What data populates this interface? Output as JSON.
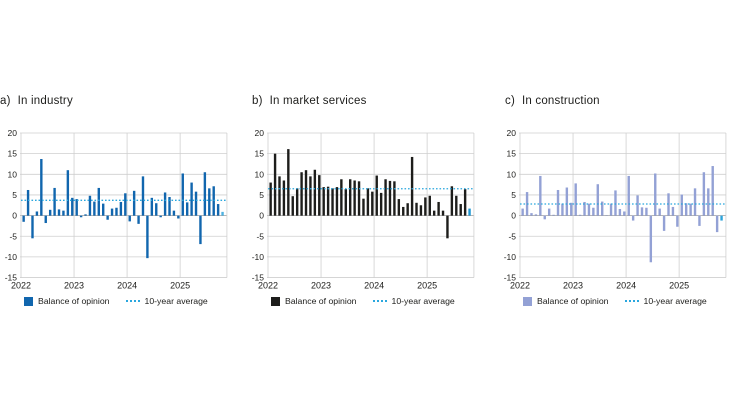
{
  "style": {
    "background": "#ffffff",
    "grid_color": "#cfcfcf",
    "zero_line_color": "#9e9e9e",
    "text_color": "#1d1d1b"
  },
  "chart_data": [
    {
      "type": "bar",
      "label": "a)",
      "title": "In industry",
      "frequency": "monthly",
      "x_start": "Jan 2022",
      "x_end": "Oct 2025",
      "x_ticks": [
        "2022",
        "2023",
        "2024",
        "2025"
      ],
      "y_ticks": [
        20,
        15,
        10,
        5,
        0,
        -5,
        -10,
        -15
      ],
      "ylim": [
        -15,
        20
      ],
      "grid": true,
      "values": [
        -1.5,
        6.2,
        -5.5,
        1.0,
        13.7,
        -1.8,
        1.4,
        6.7,
        1.5,
        1.2,
        11.0,
        4.3,
        4.0,
        -0.4,
        0.3,
        4.8,
        3.4,
        6.7,
        2.9,
        -1.0,
        1.7,
        1.9,
        3.3,
        5.4,
        -1.4,
        6.0,
        -2.0,
        9.5,
        -10.3,
        4.3,
        3.0,
        -0.4,
        5.6,
        4.5,
        1.2,
        -0.7,
        10.2,
        3.2,
        8.0,
        5.8,
        -6.9,
        10.5,
        6.6,
        7.1,
        2.8,
        0.9
      ],
      "average_10yr": 3.7,
      "bar_color": "#1166ae",
      "last_bar_color": "#4db2e2",
      "average_line_color": "#2aa7de",
      "legend": {
        "balance": "Balance of opinion",
        "average": "10-year average"
      },
      "legend_position": "bottom"
    },
    {
      "type": "bar",
      "label": "b)",
      "title": "In market services",
      "frequency": "monthly",
      "x_start": "Jan 2022",
      "x_end": "Oct 2025",
      "x_ticks": [
        "2022",
        "2023",
        "2024",
        "2025"
      ],
      "y_ticks": [
        20,
        15,
        10,
        5,
        0,
        -5,
        -10,
        -15
      ],
      "ylim": [
        -15,
        20
      ],
      "grid": true,
      "values": [
        8.0,
        15.0,
        9.5,
        8.5,
        16.1,
        4.7,
        6.6,
        10.5,
        11.0,
        9.5,
        11.1,
        9.8,
        6.9,
        7.0,
        6.6,
        6.9,
        8.8,
        6.4,
        8.8,
        8.5,
        8.3,
        4.1,
        6.6,
        5.8,
        9.7,
        5.5,
        8.8,
        8.4,
        8.3,
        4.0,
        2.1,
        3.0,
        14.2,
        3.1,
        2.5,
        4.4,
        4.8,
        1.2,
        3.3,
        1.2,
        -5.5,
        7.1,
        4.8,
        2.8,
        6.4,
        1.7
      ],
      "average_10yr": 6.5,
      "bar_color": "#1d1d1b",
      "last_bar_color": "#1d97d4",
      "average_line_color": "#2aa7de",
      "legend": {
        "balance": "Balance of opinion",
        "average": "10-year average"
      },
      "legend_position": "bottom"
    },
    {
      "type": "bar",
      "label": "c)",
      "title": "In construction",
      "frequency": "monthly",
      "x_start": "Jan 2022",
      "x_end": "Oct 2025",
      "x_ticks": [
        "2022",
        "2023",
        "2024",
        "2025"
      ],
      "y_ticks": [
        20,
        15,
        10,
        5,
        0,
        -5,
        -10,
        -15
      ],
      "ylim": [
        -15,
        20
      ],
      "grid": true,
      "values": [
        1.7,
        5.7,
        0.6,
        0.3,
        9.6,
        -0.9,
        1.7,
        0.2,
        6.2,
        2.9,
        6.8,
        3.1,
        7.8,
        0.2,
        3.3,
        2.9,
        1.9,
        7.6,
        3.4,
        0.1,
        2.9,
        6.1,
        1.6,
        1.0,
        9.6,
        -1.2,
        4.9,
        2.0,
        1.9,
        -11.3,
        10.2,
        1.7,
        -3.7,
        5.4,
        2.1,
        -2.7,
        5.1,
        3.0,
        2.9,
        6.6,
        -2.5,
        10.5,
        6.6,
        12.0,
        -4.0,
        -1.2
      ],
      "average_10yr": 2.8,
      "bar_color": "#93a1d5",
      "last_bar_color": "#2ca3da",
      "average_line_color": "#2aa7de",
      "legend": {
        "balance": "Balance of opinion",
        "average": "10-year average"
      },
      "legend_position": "bottom"
    }
  ]
}
